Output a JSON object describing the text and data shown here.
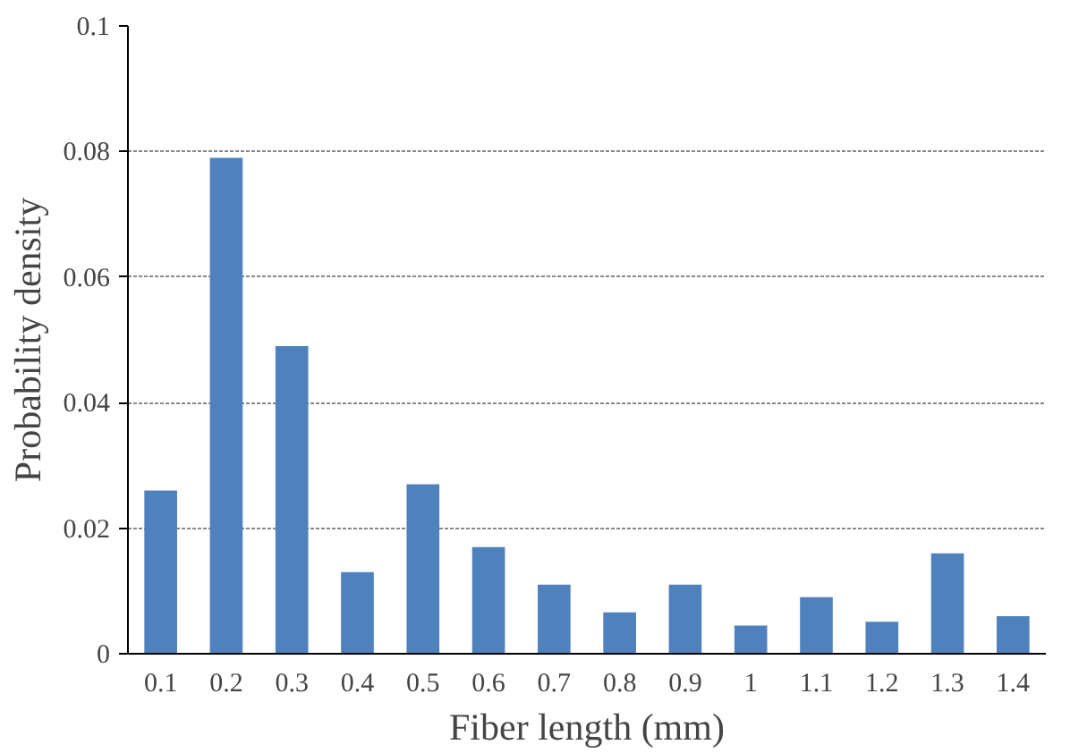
{
  "chart_data": {
    "type": "bar",
    "xlabel": "Fiber length (mm)",
    "ylabel": "Probability density",
    "categories": [
      "0.1",
      "0.2",
      "0.3",
      "0.4",
      "0.5",
      "0.6",
      "0.7",
      "0.8",
      "0.9",
      "1",
      "1.1",
      "1.2",
      "1.3",
      "1.4"
    ],
    "values": [
      0.026,
      0.079,
      0.049,
      0.013,
      0.027,
      0.017,
      0.011,
      0.0066,
      0.011,
      0.0045,
      0.009,
      0.0051,
      0.016,
      0.006
    ],
    "color": "#4f81bd",
    "ylim": [
      0,
      0.1
    ],
    "yticks": [
      0,
      0.02,
      0.04,
      0.06,
      0.08,
      0.1
    ],
    "grid": "y"
  }
}
